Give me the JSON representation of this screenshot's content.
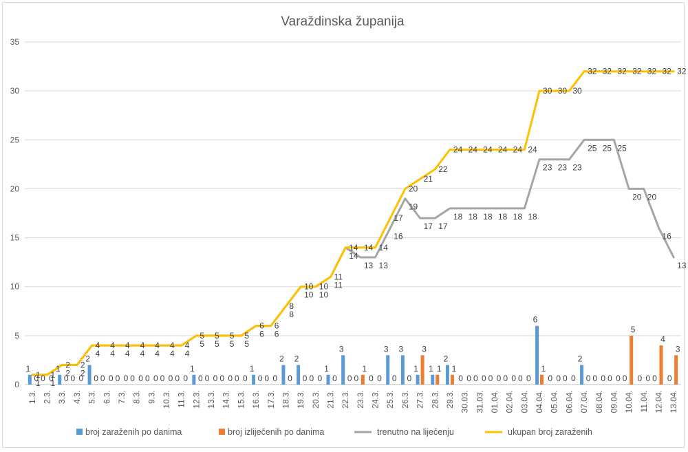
{
  "chart_data": {
    "type": "bar+line",
    "title": "Varaždinska županija",
    "ylim": [
      0,
      35
    ],
    "y_ticks": [
      0,
      5,
      10,
      15,
      20,
      25,
      30,
      35
    ],
    "grid": true,
    "legend_position": "bottom",
    "categories": [
      "1.3.",
      "2.3.",
      "3.3.",
      "4.3.",
      "5.3.",
      "6.3.",
      "7.3.",
      "8.3.",
      "9.3.",
      "10.3.",
      "11.3.",
      "12.3.",
      "13.3.",
      "14.3.",
      "15.3.",
      "16.3.",
      "17.3.",
      "18.3.",
      "19.3.",
      "20.3.",
      "21.3.",
      "22.3.",
      "23.3.",
      "24.3.",
      "25.3.",
      "26.3.",
      "27.3.",
      "28.3.",
      "29.3.",
      "30.03.",
      "31.03.",
      "01.04.",
      "02.04.",
      "03.04.",
      "04.04.",
      "05.04.",
      "06.04.",
      "07.04.",
      "08.04.",
      "09.04.",
      "10.04.",
      "11.04.",
      "12.04.",
      "13.04."
    ],
    "series": [
      {
        "name": "broj zaraženih po danima",
        "kind": "bar",
        "color": "#5B9BD5",
        "values": [
          1,
          0,
          1,
          0,
          2,
          0,
          0,
          0,
          0,
          0,
          0,
          1,
          0,
          0,
          0,
          1,
          0,
          2,
          2,
          0,
          1,
          3,
          0,
          0,
          3,
          3,
          1,
          1,
          2,
          0,
          0,
          0,
          0,
          0,
          6,
          0,
          0,
          2,
          0,
          0,
          0,
          0,
          0,
          0
        ]
      },
      {
        "name": "broj izliječenih po danima",
        "kind": "bar",
        "color": "#ED7D31",
        "values": [
          0,
          0,
          0,
          0,
          0,
          0,
          0,
          0,
          0,
          0,
          0,
          0,
          0,
          0,
          0,
          0,
          0,
          0,
          0,
          0,
          0,
          0,
          1,
          0,
          0,
          0,
          3,
          1,
          1,
          0,
          0,
          0,
          0,
          0,
          1,
          0,
          0,
          0,
          0,
          0,
          5,
          0,
          4,
          3
        ]
      },
      {
        "name": "trenutno na liječenju",
        "kind": "line",
        "color": "#A5A5A5",
        "values": [
          1,
          1,
          2,
          2,
          4,
          4,
          4,
          4,
          4,
          4,
          4,
          5,
          5,
          5,
          5,
          6,
          6,
          8,
          10,
          10,
          11,
          14,
          13,
          13,
          16,
          19,
          17,
          17,
          18,
          18,
          18,
          18,
          18,
          18,
          23,
          23,
          23,
          25,
          25,
          25,
          20,
          20,
          16,
          13
        ]
      },
      {
        "name": "ukupan broj zaraženih",
        "kind": "line",
        "color": "#FFC000",
        "values": [
          1,
          1,
          2,
          2,
          4,
          4,
          4,
          4,
          4,
          4,
          4,
          5,
          5,
          5,
          5,
          6,
          6,
          8,
          10,
          10,
          11,
          14,
          14,
          14,
          17,
          20,
          21,
          22,
          24,
          24,
          24,
          24,
          24,
          24,
          30,
          30,
          30,
          32,
          32,
          32,
          32,
          32,
          32,
          32
        ]
      }
    ]
  }
}
